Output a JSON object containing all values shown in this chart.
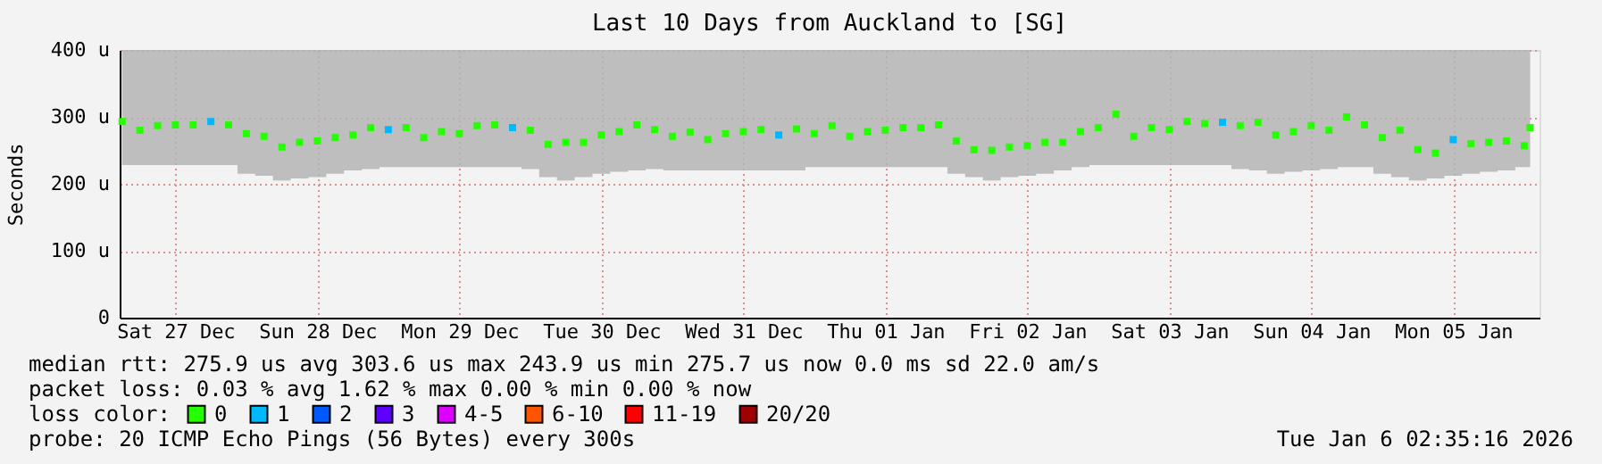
{
  "chart_data": {
    "type": "scatter",
    "marker": "square",
    "title": "Last 10 Days from Auckland to [SG]",
    "ylabel": "Seconds",
    "legend_title": "loss color:",
    "legend": "bottom",
    "grid": true,
    "xlim": [
      "2025-12-27T02:35",
      "2026-01-06T02:35"
    ],
    "xticks": [
      {
        "value": "2025-12-27T12:00",
        "label": "Sat 27 Dec"
      },
      {
        "value": "2025-12-28T12:00",
        "label": "Sun 28 Dec"
      },
      {
        "value": "2025-12-29T12:00",
        "label": "Mon 29 Dec"
      },
      {
        "value": "2025-12-30T12:00",
        "label": "Tue 30 Dec"
      },
      {
        "value": "2025-12-31T12:00",
        "label": "Wed 31 Dec"
      },
      {
        "value": "2026-01-01T12:00",
        "label": "Thu 01 Jan"
      },
      {
        "value": "2026-01-02T12:00",
        "label": "Fri 02 Jan"
      },
      {
        "value": "2026-01-03T12:00",
        "label": "Sat 03 Jan"
      },
      {
        "value": "2026-01-04T12:00",
        "label": "Sun 04 Jan"
      },
      {
        "value": "2026-01-05T12:00",
        "label": "Mon 05 Jan"
      }
    ],
    "ylim": [
      0,
      400
    ],
    "yticks": [
      0,
      {
        "value": 100,
        "label": "100 u"
      },
      {
        "value": 200,
        "label": "200 u"
      },
      {
        "value": 300,
        "label": "300 u"
      },
      {
        "value": 400,
        "label": "400 u"
      }
    ],
    "x": [
      "2025-12-27T03:00",
      "2025-12-27T06:00",
      "2025-12-27T09:00",
      "2025-12-27T12:00",
      "2025-12-27T15:00",
      "2025-12-27T18:00",
      "2025-12-27T21:00",
      "2025-12-28T00:00",
      "2025-12-28T03:00",
      "2025-12-28T06:00",
      "2025-12-28T09:00",
      "2025-12-28T12:00",
      "2025-12-28T15:00",
      "2025-12-28T18:00",
      "2025-12-28T21:00",
      "2025-12-29T00:00",
      "2025-12-29T03:00",
      "2025-12-29T06:00",
      "2025-12-29T09:00",
      "2025-12-29T12:00",
      "2025-12-29T15:00",
      "2025-12-29T18:00",
      "2025-12-29T21:00",
      "2025-12-30T00:00",
      "2025-12-30T03:00",
      "2025-12-30T06:00",
      "2025-12-30T09:00",
      "2025-12-30T12:00",
      "2025-12-30T15:00",
      "2025-12-30T18:00",
      "2025-12-30T21:00",
      "2025-12-31T00:00",
      "2025-12-31T03:00",
      "2025-12-31T06:00",
      "2025-12-31T09:00",
      "2025-12-31T12:00",
      "2025-12-31T15:00",
      "2025-12-31T18:00",
      "2025-12-31T21:00",
      "2026-01-01T00:00",
      "2026-01-01T03:00",
      "2026-01-01T06:00",
      "2026-01-01T09:00",
      "2026-01-01T12:00",
      "2026-01-01T15:00",
      "2026-01-01T18:00",
      "2026-01-01T21:00",
      "2026-01-02T00:00",
      "2026-01-02T03:00",
      "2026-01-02T06:00",
      "2026-01-02T09:00",
      "2026-01-02T12:00",
      "2026-01-02T15:00",
      "2026-01-02T18:00",
      "2026-01-02T21:00",
      "2026-01-03T00:00",
      "2026-01-03T03:00",
      "2026-01-03T06:00",
      "2026-01-03T09:00",
      "2026-01-03T12:00",
      "2026-01-03T15:00",
      "2026-01-03T18:00",
      "2026-01-03T21:00",
      "2026-01-04T00:00",
      "2026-01-04T03:00",
      "2026-01-04T06:00",
      "2026-01-04T09:00",
      "2026-01-04T12:00",
      "2026-01-04T15:00",
      "2026-01-04T18:00",
      "2026-01-04T21:00",
      "2026-01-05T00:00",
      "2026-01-05T03:00",
      "2026-01-05T06:00",
      "2026-01-05T09:00",
      "2026-01-05T12:00",
      "2026-01-05T15:00",
      "2026-01-05T18:00",
      "2026-01-05T21:00",
      "2026-01-06T00:00",
      "2026-01-06T01:00"
    ],
    "series": [
      {
        "name": "0",
        "color": "#26ff00",
        "values": [
          293,
          280,
          287,
          288,
          288,
          null,
          288,
          275,
          271,
          255,
          262,
          264,
          269,
          273,
          284,
          null,
          284,
          269,
          278,
          275,
          287,
          288,
          null,
          280,
          259,
          262,
          262,
          273,
          278,
          288,
          281,
          271,
          277,
          266,
          275,
          278,
          281,
          null,
          282,
          275,
          287,
          271,
          278,
          280,
          284,
          284,
          288,
          264,
          251,
          250,
          255,
          257,
          262,
          262,
          278,
          284,
          304,
          271,
          284,
          281,
          293,
          290,
          null,
          287,
          292,
          273,
          278,
          287,
          280,
          300,
          288,
          269,
          280,
          251,
          246,
          null,
          260,
          262,
          264,
          257,
          284
        ],
        "lower": [
          228,
          228,
          228,
          228,
          228,
          228,
          228,
          215,
          212,
          205,
          208,
          210,
          215,
          220,
          222,
          225,
          225,
          225,
          225,
          225,
          225,
          225,
          225,
          222,
          210,
          205,
          210,
          215,
          218,
          220,
          222,
          220,
          220,
          220,
          220,
          220,
          220,
          220,
          220,
          225,
          225,
          225,
          225,
          225,
          225,
          225,
          225,
          215,
          210,
          205,
          210,
          212,
          215,
          220,
          225,
          228,
          228,
          228,
          228,
          228,
          228,
          228,
          228,
          222,
          220,
          215,
          218,
          220,
          222,
          225,
          225,
          215,
          210,
          205,
          208,
          212,
          215,
          218,
          220,
          225,
          225
        ],
        "upper": [
          400,
          400,
          400,
          400,
          400,
          400,
          400,
          400,
          400,
          400,
          400,
          400,
          400,
          400,
          400,
          400,
          400,
          400,
          400,
          400,
          400,
          400,
          400,
          400,
          400,
          400,
          400,
          400,
          400,
          400,
          400,
          400,
          400,
          400,
          400,
          400,
          400,
          400,
          400,
          400,
          400,
          400,
          400,
          400,
          400,
          400,
          400,
          400,
          400,
          400,
          400,
          400,
          400,
          400,
          400,
          400,
          400,
          400,
          400,
          400,
          400,
          400,
          400,
          400,
          400,
          400,
          400,
          400,
          400,
          400,
          400,
          400,
          400,
          400,
          400,
          400,
          400,
          400,
          400,
          400,
          400
        ]
      },
      {
        "name": "1",
        "color": "#00b8ff",
        "x": [
          "2025-12-27T18:00",
          "2025-12-29T00:00",
          "2025-12-29T21:00",
          "2025-12-31T18:00",
          "2026-01-03T21:00",
          "2026-01-05T12:00"
        ],
        "values": [
          293,
          281,
          284,
          273,
          292,
          266
        ]
      },
      {
        "name": "2",
        "color": "#0059ff",
        "values": [
          null,
          null,
          null,
          null,
          null,
          null,
          null,
          null,
          null,
          null,
          null,
          null,
          null,
          null,
          null,
          null,
          null,
          null,
          null,
          null,
          null,
          null,
          null,
          null,
          null,
          null,
          null,
          null,
          null,
          null,
          null,
          null,
          null,
          null,
          null,
          null,
          null,
          null,
          null,
          null,
          null,
          null,
          null,
          null,
          null,
          null,
          null,
          null,
          null,
          null,
          null,
          null,
          null,
          null,
          null,
          null,
          null,
          null,
          null,
          null,
          null,
          null,
          null,
          null,
          null,
          null,
          null,
          null,
          null,
          null,
          null,
          null,
          null,
          null,
          null,
          null,
          null,
          null,
          null,
          null,
          null
        ]
      },
      {
        "name": "3",
        "color": "#5e00ff",
        "values": [
          null,
          null,
          null,
          null,
          null,
          null,
          null,
          null,
          null,
          null,
          null,
          null,
          null,
          null,
          null,
          null,
          null,
          null,
          null,
          null,
          null,
          null,
          null,
          null,
          null,
          null,
          null,
          null,
          null,
          null,
          null,
          null,
          null,
          null,
          null,
          null,
          null,
          null,
          null,
          null,
          null,
          null,
          null,
          null,
          null,
          null,
          null,
          null,
          null,
          null,
          null,
          null,
          null,
          null,
          null,
          null,
          null,
          null,
          null,
          null,
          null,
          null,
          null,
          null,
          null,
          null,
          null,
          null,
          null,
          null,
          null,
          null,
          null,
          null,
          null,
          null,
          null,
          null,
          null,
          null,
          null
        ]
      },
      {
        "name": "4-5",
        "color": "#dd00ff",
        "values": [
          null,
          null,
          null,
          null,
          null,
          null,
          null,
          null,
          null,
          null,
          null,
          null,
          null,
          null,
          null,
          null,
          null,
          null,
          null,
          null,
          null,
          null,
          null,
          null,
          null,
          null,
          null,
          null,
          null,
          null,
          null,
          null,
          null,
          null,
          null,
          null,
          null,
          null,
          null,
          null,
          null,
          null,
          null,
          null,
          null,
          null,
          null,
          null,
          null,
          null,
          null,
          null,
          null,
          null,
          null,
          null,
          null,
          null,
          null,
          null,
          null,
          null,
          null,
          null,
          null,
          null,
          null,
          null,
          null,
          null,
          null,
          null,
          null,
          null,
          null,
          null,
          null,
          null,
          null,
          null,
          null
        ]
      },
      {
        "name": "6-10",
        "color": "#ff5500",
        "values": [
          null,
          null,
          null,
          null,
          null,
          null,
          null,
          null,
          null,
          null,
          null,
          null,
          null,
          null,
          null,
          null,
          null,
          null,
          null,
          null,
          null,
          null,
          null,
          null,
          null,
          null,
          null,
          null,
          null,
          null,
          null,
          null,
          null,
          null,
          null,
          null,
          null,
          null,
          null,
          null,
          null,
          null,
          null,
          null,
          null,
          null,
          null,
          null,
          null,
          null,
          null,
          null,
          null,
          null,
          null,
          null,
          null,
          null,
          null,
          null,
          null,
          null,
          null,
          null,
          null,
          null,
          null,
          null,
          null,
          null,
          null,
          null,
          null,
          null,
          null,
          null,
          null,
          null,
          null,
          null,
          null
        ]
      },
      {
        "name": "11-19",
        "color": "#ff0000",
        "values": [
          null,
          null,
          null,
          null,
          null,
          null,
          null,
          null,
          null,
          null,
          null,
          null,
          null,
          null,
          null,
          null,
          null,
          null,
          null,
          null,
          null,
          null,
          null,
          null,
          null,
          null,
          null,
          null,
          null,
          null,
          null,
          null,
          null,
          null,
          null,
          null,
          null,
          null,
          null,
          null,
          null,
          null,
          null,
          null,
          null,
          null,
          null,
          null,
          null,
          null,
          null,
          null,
          null,
          null,
          null,
          null,
          null,
          null,
          null,
          null,
          null,
          null,
          null,
          null,
          null,
          null,
          null,
          null,
          null,
          null,
          null,
          null,
          null,
          null,
          null,
          null,
          null,
          null,
          null,
          null,
          null
        ]
      },
      {
        "name": "20/20",
        "color": "#a10000",
        "values": [
          null,
          null,
          null,
          null,
          null,
          null,
          null,
          null,
          null,
          null,
          null,
          null,
          null,
          null,
          null,
          null,
          null,
          null,
          null,
          null,
          null,
          null,
          null,
          null,
          null,
          null,
          null,
          null,
          null,
          null,
          null,
          null,
          null,
          null,
          null,
          null,
          null,
          null,
          null,
          null,
          null,
          null,
          null,
          null,
          null,
          null,
          null,
          null,
          null,
          null,
          null,
          null,
          null,
          null,
          null,
          null,
          null,
          null,
          null,
          null,
          null,
          null,
          null,
          null,
          null,
          null,
          null,
          null,
          null,
          null,
          null,
          null,
          null,
          null,
          null,
          null,
          null,
          null,
          null,
          null,
          null
        ]
      }
    ],
    "annotations": [
      "median rtt:  275.9 us avg  303.6 us max  243.9 us min  275.7 us now  0.0 ms sd  22.0   am/s",
      "packet loss: 0.03 % avg  1.62 % max  0.00 % min  0.00 % now",
      "probe:       20 ICMP Echo Pings (56 Bytes) every 300s",
      "Tue Jan  6 02:35:16 2026"
    ]
  }
}
